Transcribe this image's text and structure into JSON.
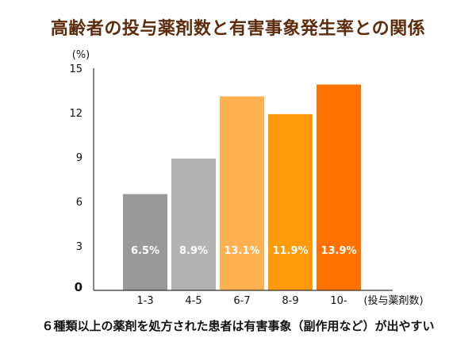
{
  "title": "高齢者の投与薬剤数と有害事象発生率との関係",
  "caption": "６種類以上の薬剤を処方された患者は有害事象（副作用など）が出やすい",
  "chart_data": {
    "type": "bar",
    "title": "高齢者の投与薬剤数と有害事象発生率との関係",
    "ylabel": "(%)",
    "xlabel": "(投与薬剤数)",
    "ylim": [
      0,
      15
    ],
    "yticks": [
      0,
      3,
      6,
      9,
      12,
      15
    ],
    "grid": false,
    "categories": [
      "1-3",
      "4-5",
      "6-7",
      "8-9",
      "10-"
    ],
    "values": [
      6.5,
      8.9,
      13.1,
      11.9,
      13.9
    ],
    "data_labels": [
      "6.5%",
      "8.9%",
      "13.1%",
      "11.9%",
      "13.9%"
    ],
    "colors": [
      "#999999",
      "#b3b3b3",
      "#ffb050",
      "#ff9a0a",
      "#ff7200"
    ],
    "axis_color": "#333333",
    "label_color": "#ffffff"
  }
}
